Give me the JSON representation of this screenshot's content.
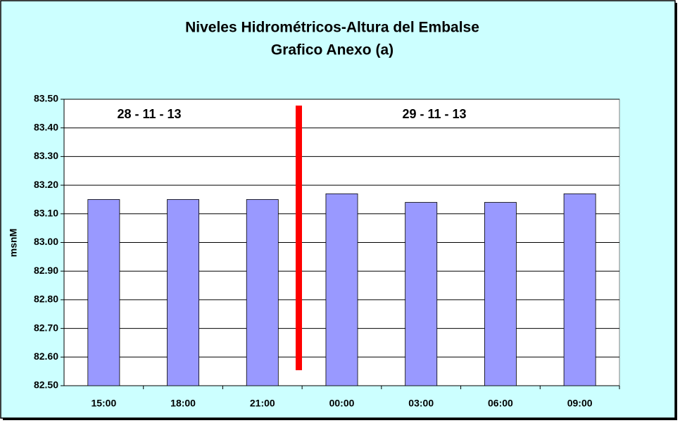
{
  "chart_data": {
    "type": "bar",
    "title": "Niveles Hidrométricos-Altura del Embalse",
    "subtitle": "Grafico Anexo (a)",
    "y_label": "msnM",
    "annotations": [
      "28 - 11 - 13",
      "29 - 11 - 13"
    ],
    "categories": [
      "15:00",
      "18:00",
      "21:00",
      "00:00",
      "03:00",
      "06:00",
      "09:00"
    ],
    "values": [
      83.15,
      83.15,
      83.15,
      83.17,
      83.14,
      83.14,
      83.17
    ],
    "color": "#9999ff",
    "ylim": [
      82.5,
      83.5
    ],
    "yticks": [
      {
        "value": 82.5,
        "label": "82.50"
      },
      {
        "value": 82.6,
        "label": "82.60"
      },
      {
        "value": 82.7,
        "label": "82.70"
      },
      {
        "value": 82.8,
        "label": "82.80"
      },
      {
        "value": 82.9,
        "label": "82.90"
      },
      {
        "value": 83.0,
        "label": "83.00"
      },
      {
        "value": 83.1,
        "label": "83.10"
      },
      {
        "value": 83.2,
        "label": "83.20"
      },
      {
        "value": 83.3,
        "label": "83.30"
      },
      {
        "value": 83.4,
        "label": "83.40"
      },
      {
        "value": 83.5,
        "label": "83.50"
      }
    ],
    "grid": true
  }
}
